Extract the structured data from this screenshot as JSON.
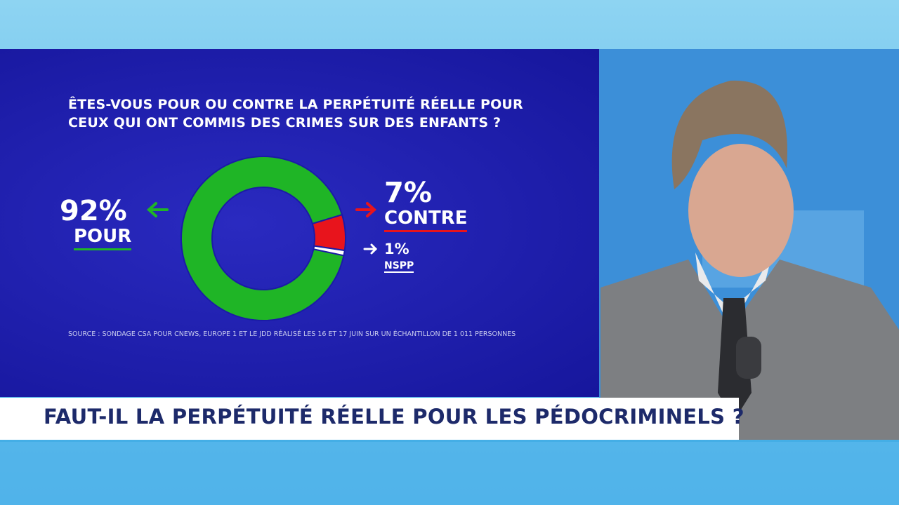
{
  "chart_data": {
    "type": "donut",
    "title": "ÊTES-VOUS POUR OU CONTRE LA PERPÉTUITÉ RÉELLE POUR CEUX QUI ONT COMMIS DES CRIMES SUR DES ENFANTS ?",
    "categories": [
      "POUR",
      "CONTRE",
      "NSPP"
    ],
    "values": [
      92,
      7,
      1
    ],
    "value_labels": [
      "92%",
      "7%",
      "1%"
    ],
    "colors": [
      "#1fb526",
      "#e8141c",
      "#ffffff"
    ],
    "source": "SOURCE : SONDAGE CSA POUR CNEWS, EUROPE 1 ET LE JDD RÉALISÉ LES 16 ET 17 JUIN SUR UN ÉCHANTILLON DE 1 011 PERSONNES"
  },
  "banner": {
    "headline": "FAUT-IL LA PERPÉTUITÉ RÉELLE POUR LES PÉDOCRIMINELS ?"
  }
}
